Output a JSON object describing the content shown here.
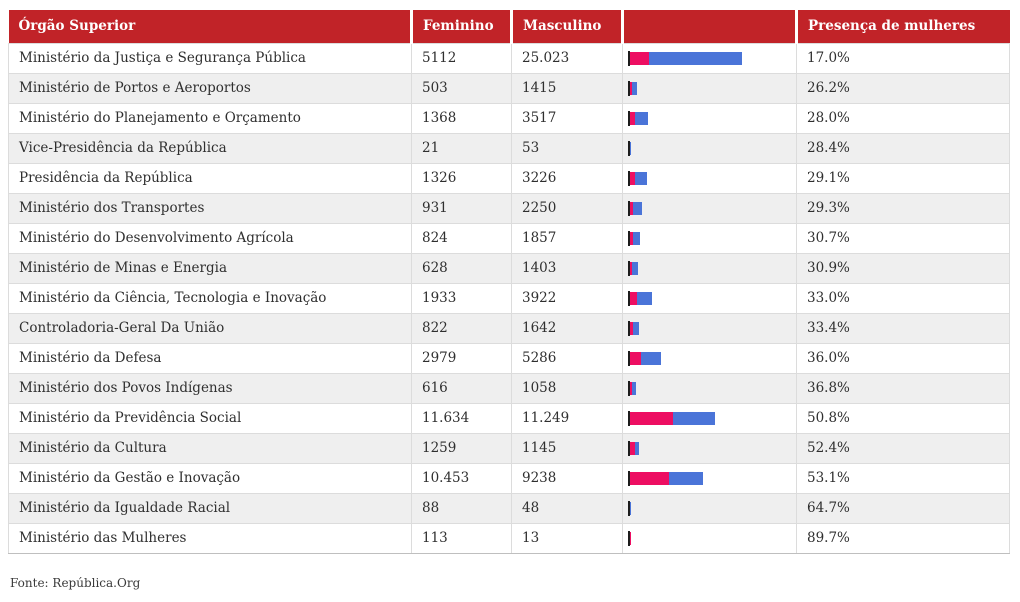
{
  "chart_data": {
    "type": "table",
    "columns": [
      "Órgão Superior",
      "Feminino",
      "Masculino",
      "",
      "Presença de mulheres"
    ],
    "bar_chart": {
      "type": "bar",
      "orientation": "horizontal-stacked",
      "series": [
        "Feminino",
        "Masculino"
      ],
      "colors": [
        "#ed0e62",
        "#4a74d8"
      ],
      "scale": "bar length proportional to Feminino+Masculino total; max total 30135 ≈ 112px"
    },
    "rows": [
      {
        "org": "Ministério da Justiça e Segurança Pública",
        "feminino": "5112",
        "masculino": "25.023",
        "presenca": "17.0%"
      },
      {
        "org": "Ministério de Portos e Aeroportos",
        "feminino": "503",
        "masculino": "1415",
        "presenca": "26.2%"
      },
      {
        "org": "Ministério do Planejamento e Orçamento",
        "feminino": "1368",
        "masculino": "3517",
        "presenca": "28.0%"
      },
      {
        "org": "Vice-Presidência da República",
        "feminino": "21",
        "masculino": "53",
        "presenca": "28.4%"
      },
      {
        "org": "Presidência da República",
        "feminino": "1326",
        "masculino": "3226",
        "presenca": "29.1%"
      },
      {
        "org": "Ministério dos Transportes",
        "feminino": "931",
        "masculino": "2250",
        "presenca": "29.3%"
      },
      {
        "org": "Ministério do Desenvolvimento Agrícola",
        "feminino": "824",
        "masculino": "1857",
        "presenca": "30.7%"
      },
      {
        "org": "Ministério de Minas e Energia",
        "feminino": "628",
        "masculino": "1403",
        "presenca": "30.9%"
      },
      {
        "org": "Ministério da Ciência, Tecnologia e Inovação",
        "feminino": "1933",
        "masculino": "3922",
        "presenca": "33.0%"
      },
      {
        "org": "Controladoria-Geral Da União",
        "feminino": "822",
        "masculino": "1642",
        "presenca": "33.4%"
      },
      {
        "org": "Ministério da Defesa",
        "feminino": "2979",
        "masculino": "5286",
        "presenca": "36.0%"
      },
      {
        "org": "Ministério dos Povos Indígenas",
        "feminino": "616",
        "masculino": "1058",
        "presenca": "36.8%"
      },
      {
        "org": "Ministério da Previdência Social",
        "feminino": "11.634",
        "masculino": "11.249",
        "presenca": "50.8%"
      },
      {
        "org": "Ministério da Cultura",
        "feminino": "1259",
        "masculino": "1145",
        "presenca": "52.4%"
      },
      {
        "org": "Ministério da Gestão e Inovação",
        "feminino": "10.453",
        "masculino": "9238",
        "presenca": "53.1%"
      },
      {
        "org": "Ministério da Igualdade Racial",
        "feminino": "88",
        "masculino": "48",
        "presenca": "64.7%"
      },
      {
        "org": "Ministério das Mulheres",
        "feminino": "113",
        "masculino": "13",
        "presenca": "89.7%"
      }
    ]
  },
  "colors": {
    "header_bg": "#c12328",
    "female_bar": "#ed0e62",
    "male_bar": "#4a74d8",
    "row_stripe": "#efefef",
    "border": "#dcdcdc"
  },
  "footer": {
    "source": "Fonte: República.Org"
  }
}
